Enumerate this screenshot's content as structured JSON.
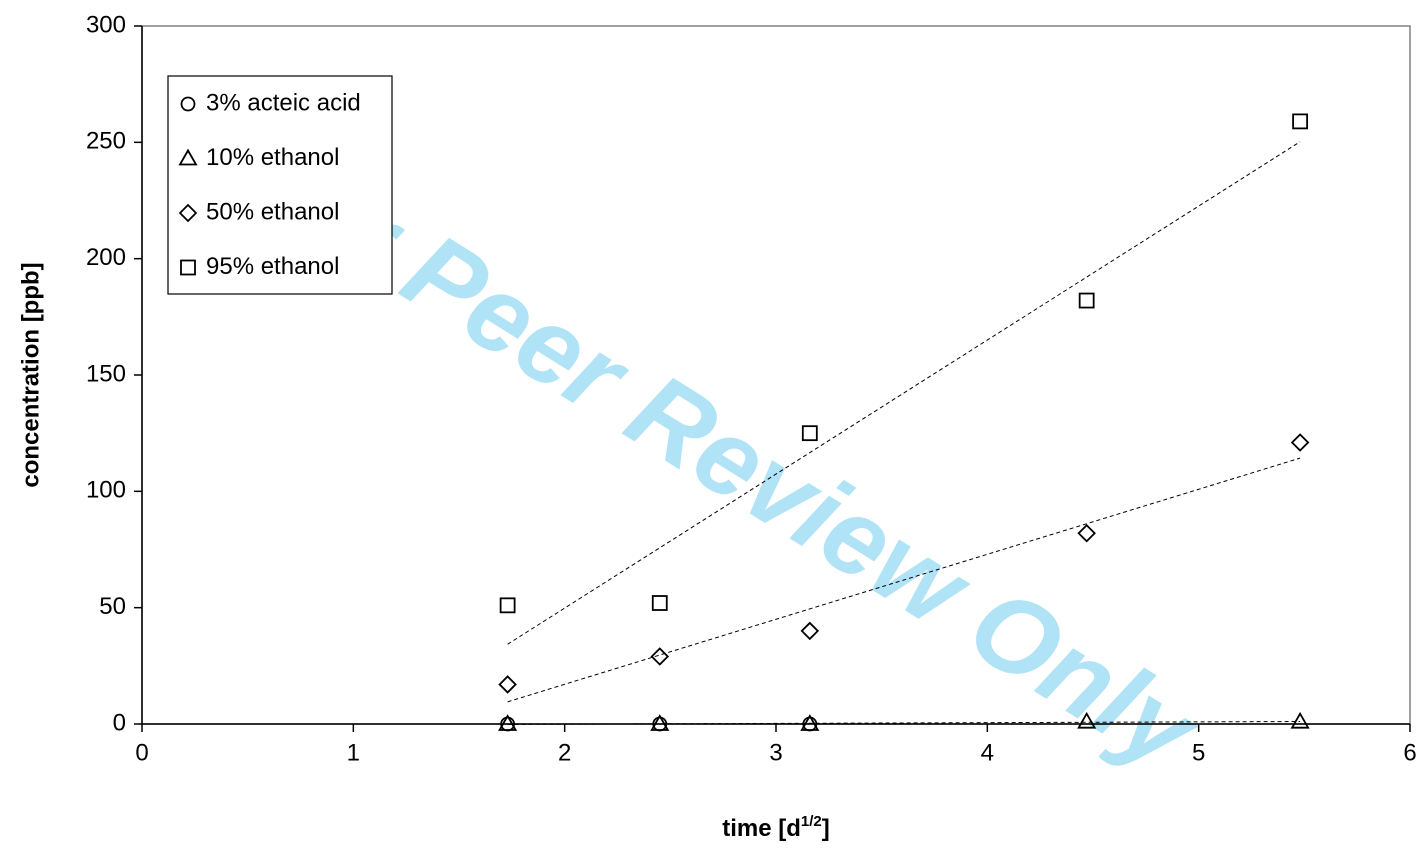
{
  "chart_data": {
    "type": "scatter",
    "watermark": "For Peer Review Only",
    "xlabel": "time [d",
    "xlabel_sup": "1/2",
    "xlabel_end": "]",
    "ylabel": "concentration [ppb]",
    "x": [
      1.73,
      2.45,
      3.16,
      4.47,
      5.48
    ],
    "series": [
      {
        "name": "3% acteic acid",
        "marker": "circle",
        "color": "#000000",
        "values": [
          0,
          0,
          0,
          null,
          null
        ]
      },
      {
        "name": "10% ethanol",
        "marker": "triangle",
        "color": "#000000",
        "values": [
          0,
          0,
          0,
          1,
          1
        ]
      },
      {
        "name": "50% ethanol",
        "marker": "diamond",
        "color": "#000000",
        "values": [
          17,
          29,
          40,
          82,
          121
        ]
      },
      {
        "name": "95% ethanol",
        "marker": "square",
        "color": "#000000",
        "values": [
          51,
          52,
          125,
          182,
          259
        ]
      }
    ],
    "trendline": "linear",
    "xlim": [
      0,
      6
    ],
    "xticks": [
      0,
      1,
      2,
      3,
      4,
      5,
      6
    ],
    "ylim": [
      0,
      300
    ],
    "yticks": [
      0,
      50,
      100,
      150,
      200,
      250,
      300
    ],
    "legend": "upper left",
    "grid": false
  }
}
